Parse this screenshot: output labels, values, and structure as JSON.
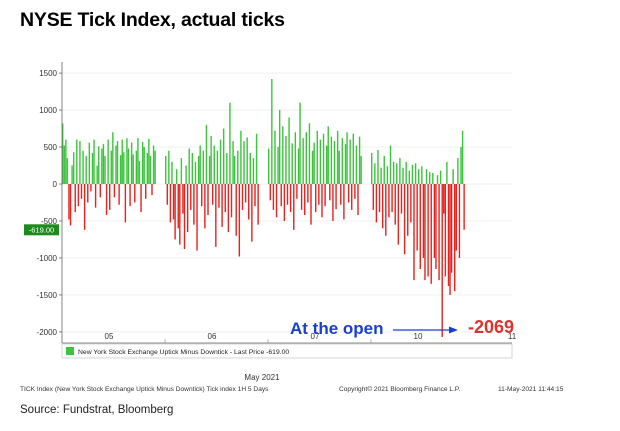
{
  "title": "NYSE Tick Index, actual ticks",
  "source": "Source: Fundstrat, Bloomberg",
  "chart_data": {
    "type": "bar",
    "title": "NYSE Tick Index, actual ticks",
    "xlabel": "May 2021",
    "ylabel": "",
    "ylim": [
      -2150,
      1650
    ],
    "yticks": [
      1500,
      1000,
      500,
      0,
      -500,
      -1000,
      -1500,
      -2000
    ],
    "ytick_labels": [
      "1500",
      "1000",
      "500",
      "0",
      "-500",
      "-1000",
      "-1500",
      "-2000"
    ],
    "xtick_labels": [
      "05",
      "06",
      "07",
      "10",
      "11"
    ],
    "last_price_label": "-619.00",
    "last_price": -619,
    "legend": {
      "position": "bottom-left",
      "text": "New York Stock Exchange Uptick Minus Downtick - Last Price -619.00"
    },
    "colors": {
      "positive": "#3cc43c",
      "negative": "#e8221e",
      "arrow": "#1a3fcf",
      "min_label": "#e0322d"
    },
    "annotations": [
      {
        "text": "At the open",
        "x_day": "10",
        "arrow_to_value": -2069
      },
      {
        "text": "-2069",
        "value": -2069
      }
    ],
    "footer": {
      "left": "TICK Index (New York Stock Exchange Uptick Minus Downtick) Tick index 1H 5 Days",
      "middle": "Copyright© 2021 Bloomberg Finance L.P.",
      "right": "11-May-2021 11:44:15"
    },
    "days": [
      {
        "label": "05",
        "values": [
          820,
          520,
          600,
          350,
          -480,
          -560,
          250,
          430,
          -380,
          600,
          -300,
          580,
          -200,
          450,
          -620,
          380,
          -250,
          560,
          -100,
          420,
          600,
          -320,
          250,
          510,
          -180,
          480,
          540,
          380,
          -420,
          600,
          -350,
          450,
          700,
          -180,
          520,
          580,
          -280,
          390,
          600,
          430,
          -520,
          620,
          480,
          -300,
          560,
          400,
          -250,
          450,
          620,
          310,
          -380,
          570,
          500,
          -200,
          420,
          610,
          380,
          -150,
          520,
          450
        ]
      },
      {
        "label": "06",
        "values": [
          380,
          -280,
          450,
          -520,
          300,
          -480,
          -750,
          200,
          -600,
          -820,
          350,
          -400,
          -880,
          250,
          -650,
          480,
          -350,
          420,
          -550,
          300,
          -900,
          380,
          520,
          -300,
          450,
          -600,
          800,
          -420,
          380,
          650,
          -280,
          520,
          -850,
          450,
          -320,
          600,
          -580,
          750,
          -380,
          420,
          -650,
          1100,
          -450,
          580,
          380,
          -700,
          450,
          -980,
          720,
          -350,
          580,
          -250,
          630,
          -480,
          420,
          -780,
          350,
          -300,
          680,
          -550
        ]
      },
      {
        "label": "07",
        "values": [
          480,
          -220,
          1420,
          -350,
          720,
          -450,
          500,
          1000,
          -300,
          780,
          -500,
          650,
          -280,
          900,
          -380,
          550,
          -620,
          700,
          -200,
          480,
          1100,
          -350,
          620,
          -420,
          700,
          -250,
          820,
          -550,
          450,
          560,
          -380,
          720,
          -280,
          600,
          -450,
          680,
          -300,
          520,
          780,
          -220,
          640,
          -500,
          580,
          -340,
          720,
          450,
          -280,
          620,
          -480,
          540,
          700,
          -250,
          600,
          -350,
          680,
          -200,
          520,
          -420,
          640,
          380
        ]
      },
      {
        "label": "10",
        "values": [
          420,
          -350,
          280,
          -520,
          460,
          -380,
          220,
          -600,
          380,
          -700,
          240,
          -450,
          520,
          -380,
          300,
          -550,
          280,
          -820,
          350,
          -400,
          220,
          -950,
          300,
          -700,
          180,
          -520,
          260,
          -1300,
          280,
          -900,
          200,
          -1150,
          240,
          -1000,
          -1300,
          200,
          -1250,
          160,
          -1350,
          150,
          -1000,
          -1150,
          120,
          -1300,
          180,
          -2069,
          -400,
          -1250,
          300,
          -1380,
          -1500,
          -1200,
          200,
          -1450,
          -900,
          350,
          -1000,
          500,
          720,
          -619
        ]
      }
    ]
  }
}
